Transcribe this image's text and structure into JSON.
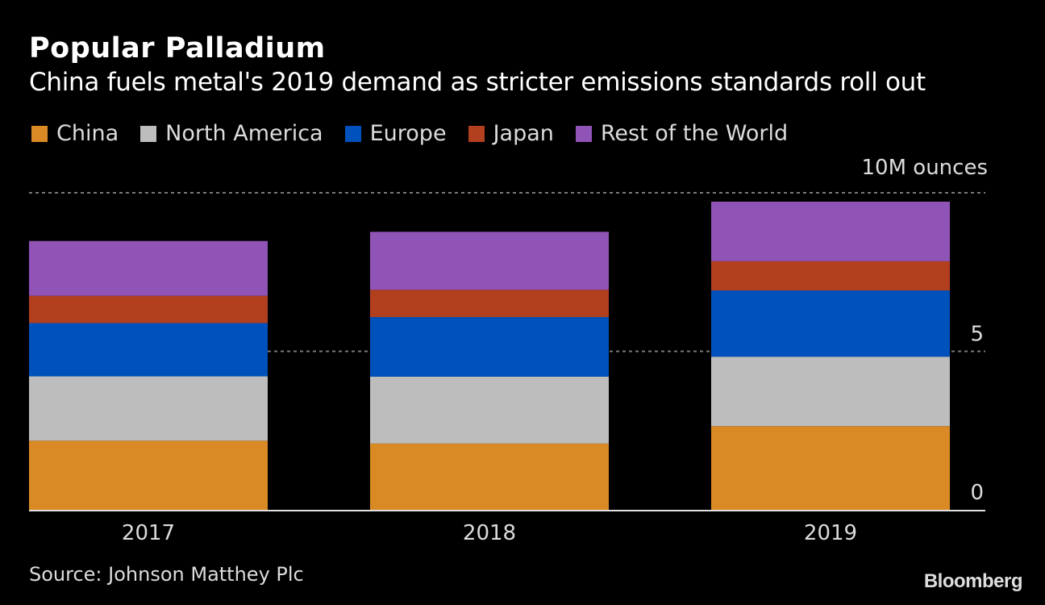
{
  "header": {
    "title": "Popular Palladium",
    "subtitle": "China fuels metal's 2019 demand as stricter emissions standards roll out"
  },
  "footer": {
    "source": "Source: Johnson Matthey Plc",
    "logo": "Bloomberg"
  },
  "chart_data": {
    "type": "bar",
    "stacked": true,
    "title": "Popular Palladium",
    "subtitle": "China fuels metal's 2019 demand as stricter emissions standards roll out",
    "xlabel": "",
    "ylabel": "10M ounces",
    "unit_label": "10M ounces",
    "categories": [
      "2017",
      "2018",
      "2019"
    ],
    "ylim": [
      0,
      10
    ],
    "yticks": [
      0,
      5,
      10
    ],
    "ytick_labels": [
      "0",
      "5",
      "10M ounces"
    ],
    "grid": true,
    "legend_position": "top-left",
    "series": [
      {
        "name": "China",
        "color": "#d98a24",
        "values": [
          2.18,
          2.09,
          2.64
        ]
      },
      {
        "name": "North America",
        "color": "#bdbdbd",
        "values": [
          2.03,
          2.11,
          2.19
        ]
      },
      {
        "name": "Europe",
        "color": "#0051bb",
        "values": [
          1.68,
          1.88,
          2.09
        ]
      },
      {
        "name": "Japan",
        "color": "#b2401f",
        "values": [
          0.86,
          0.86,
          0.92
        ]
      },
      {
        "name": "Rest of the World",
        "color": "#9053b6",
        "values": [
          1.73,
          1.83,
          1.88
        ]
      }
    ]
  }
}
